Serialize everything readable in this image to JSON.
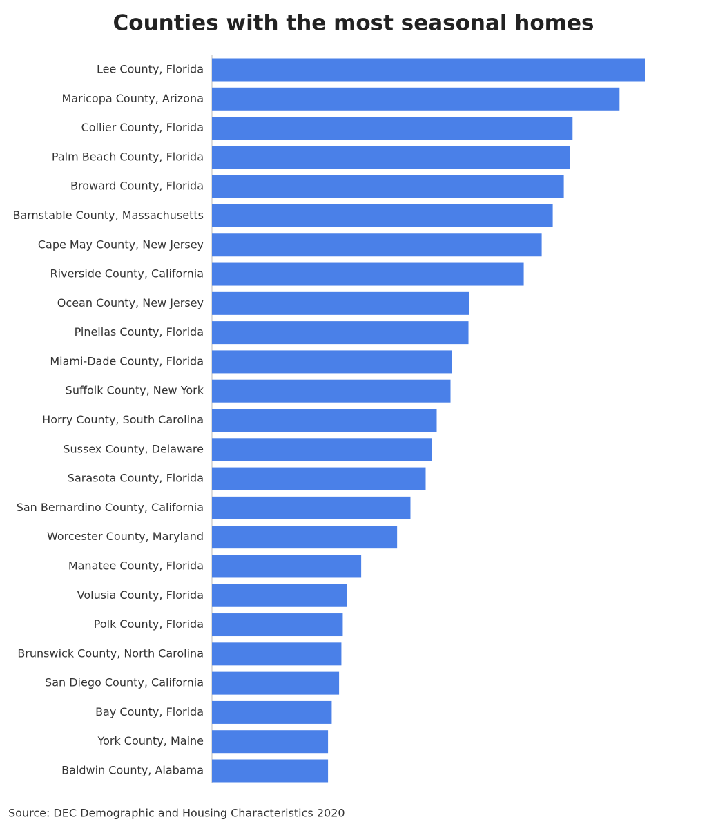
{
  "chart_data": {
    "type": "bar",
    "orientation": "horizontal",
    "title": "Counties with the most seasonal homes",
    "source": "Source: DEC Demographic and Housing Characteristics 2020",
    "categories": [
      "Lee County, Florida",
      "Maricopa County, Arizona",
      "Collier County, Florida",
      "Palm Beach County, Florida",
      "Broward County, Florida",
      "Barnstable County, Massachusetts",
      "Cape May County, New Jersey",
      "Riverside County, California",
      "Ocean County, New Jersey",
      "Pinellas County, Florida",
      "Miami-Dade County, Florida",
      "Suffolk County, New York",
      "Horry County, South Carolina",
      "Sussex County, Delaware",
      "Sarasota County, Florida",
      "San Bernardino County, California",
      "Worcester County, Maryland",
      "Manatee County, Florida",
      "Volusia County, Florida",
      "Polk County, Florida",
      "Brunswick County, North Carolina",
      "San Diego County, California",
      "Bay County, Florida",
      "York County, Maine",
      "Baldwin County, Alabama"
    ],
    "values": [
      94000,
      88500,
      78300,
      77700,
      76400,
      74000,
      71600,
      67700,
      55800,
      55700,
      52100,
      51800,
      48800,
      47700,
      46400,
      43100,
      40200,
      32400,
      29300,
      28400,
      28100,
      27600,
      26000,
      25200,
      25200
    ],
    "color": "#4a80e8",
    "xlim": [
      0,
      94000
    ]
  }
}
